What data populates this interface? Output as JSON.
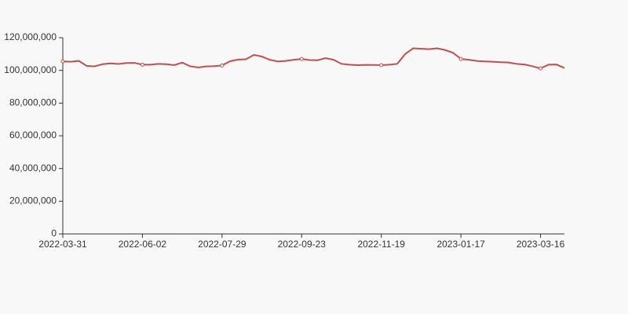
{
  "chart_data": {
    "type": "line",
    "categories": [
      "2022-03-31",
      null,
      null,
      null,
      null,
      null,
      null,
      null,
      null,
      null,
      "2022-06-02",
      null,
      null,
      null,
      null,
      null,
      null,
      null,
      null,
      null,
      "2022-07-29",
      null,
      null,
      null,
      null,
      null,
      null,
      null,
      null,
      null,
      "2022-09-23",
      null,
      null,
      null,
      null,
      null,
      null,
      null,
      null,
      null,
      "2022-11-19",
      null,
      null,
      null,
      null,
      null,
      null,
      null,
      null,
      null,
      "2023-01-17",
      null,
      null,
      null,
      null,
      null,
      null,
      null,
      null,
      null,
      "2023-03-16",
      null,
      null,
      null
    ],
    "values": [
      105500000,
      105300000,
      105800000,
      102800000,
      102500000,
      103800000,
      104300000,
      103900000,
      104500000,
      104600000,
      103500000,
      103500000,
      104000000,
      103800000,
      103200000,
      104800000,
      102500000,
      101800000,
      102400000,
      102600000,
      103000000,
      105600000,
      106600000,
      106800000,
      109500000,
      108500000,
      106500000,
      105500000,
      105800000,
      106500000,
      107000000,
      106300000,
      106200000,
      107500000,
      106500000,
      104000000,
      103500000,
      103200000,
      103400000,
      103300000,
      103200000,
      103500000,
      104000000,
      110000000,
      113500000,
      113200000,
      113000000,
      113500000,
      112500000,
      110800000,
      107000000,
      106500000,
      105800000,
      105500000,
      105300000,
      105000000,
      104800000,
      104000000,
      103600000,
      102500000,
      101200000,
      103500000,
      103600000,
      101500000
    ],
    "color": "#c0504d",
    "ylim": [
      0,
      120000000
    ],
    "yticks": [
      0,
      {
        "value": 20000000,
        "label": "20,000,000"
      },
      {
        "value": 40000000,
        "label": "40,000,000"
      },
      {
        "value": 60000000,
        "label": "60,000,000"
      },
      {
        "value": 80000000,
        "label": "80,000,000"
      },
      {
        "value": 100000000,
        "label": "100,000,000"
      },
      {
        "value": 120000000,
        "label": "120,000,000"
      }
    ]
  }
}
